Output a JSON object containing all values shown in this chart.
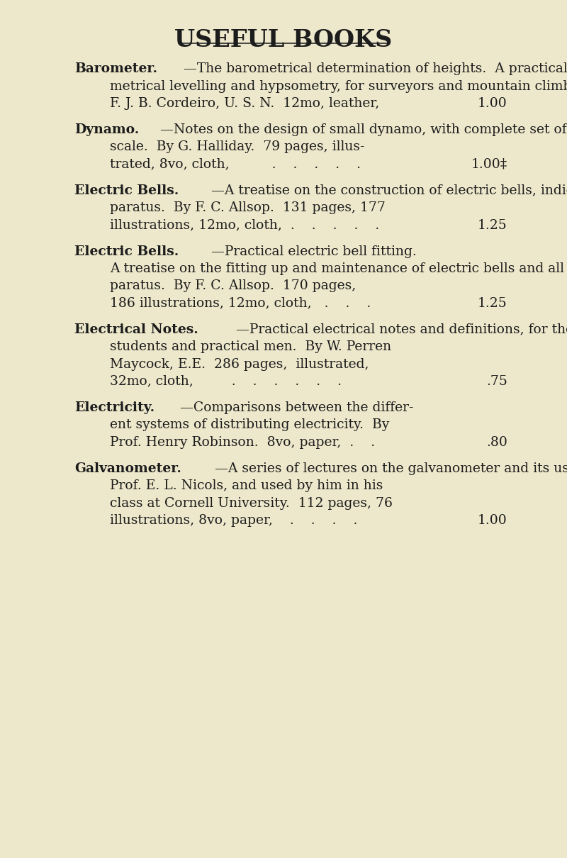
{
  "title": "USEFUL BOOKS",
  "bg_color": "#ede8cc",
  "text_color": "#1c1c1c",
  "title_fontsize": 24,
  "body_fontsize": 13.5,
  "fig_width": 8.0,
  "fig_height": 12.1,
  "entries": [
    {
      "keyword": "Barometer.",
      "lines": [
        "—The barometrical determination of heights.  A practical method of baro-",
        "metrical levelling and hypsometry, for surveyors and mountain climbers.  By Dr.",
        "F. J. B. Cordeiro, U. S. N.  12mo, leather,"
      ],
      "price": "1.00",
      "price_line_idx": 2
    },
    {
      "keyword": "Dynamo.",
      "lines": [
        "—Notes on the design of small dynamo, with complete set of drawings to",
        "scale.  By G. Halliday.  79 pages, illus-",
        "trated, 8vo, cloth,          .    .    .    .    ."
      ],
      "price": "1.00‡",
      "price_line_idx": 2
    },
    {
      "keyword": "Electric Bells.",
      "lines": [
        "—A treatise on the construction of electric bells, indicators and similar ap-",
        "paratus.  By F. C. Allsop.  131 pages, 177",
        "illustrations, 12mo, cloth,  .    .    .    .    ."
      ],
      "price": "1.25",
      "price_line_idx": 2
    },
    {
      "keyword": "Electric Bells.",
      "lines": [
        "—Practical electric bell fitting.",
        "A treatise on the fitting up and maintenance of electric bells and all their necessary ap-",
        "paratus.  By F. C. Allsop.  170 pages,",
        "186 illustrations, 12mo, cloth,   .    .    ."
      ],
      "price": "1.25",
      "price_line_idx": 3
    },
    {
      "keyword": "Electrical Notes.",
      "lines": [
        "—Practical electrical notes and definitions, for the use of engineering",
        "students and practical men.  By W. Perren",
        "Maycock, E.E.  286 pages,  illustrated,",
        "32mo, cloth,         .    .    .    .    .    ."
      ],
      "price": ".75",
      "price_line_idx": 3
    },
    {
      "keyword": "Electricity.",
      "lines": [
        "—Comparisons between the differ-",
        "ent systems of distributing electricity.  By",
        "Prof. Henry Robinson.  8vo, paper,  .    ."
      ],
      "price": ".80",
      "price_line_idx": 2
    },
    {
      "keyword": "Galvanometer.",
      "lines": [
        "—A series of lectures on the galvanometer and its uses, delivered by",
        "Prof. E. L. Nicols, and used by him in his",
        "class at Cornell University.  112 pages, 76",
        "illustrations, 8vo, paper,    .    .    .    ."
      ],
      "price": "1.00",
      "price_line_idx": 3
    }
  ]
}
